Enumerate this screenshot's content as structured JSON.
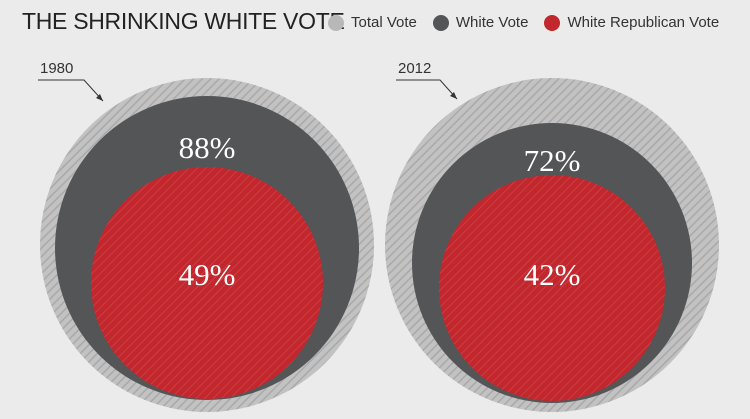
{
  "title": "THE SHRINKING WHITE VOTE",
  "legend": [
    {
      "label": "Total Vote",
      "color": "#b8b8b8"
    },
    {
      "label": "White Vote",
      "color": "#545557"
    },
    {
      "label": "White Republican Vote",
      "color": "#c1272d"
    }
  ],
  "chart_data": {
    "type": "nested-circles",
    "title": "THE SHRINKING WHITE VOTE",
    "series_names": [
      "Total Vote",
      "White Vote",
      "White Republican Vote"
    ],
    "groups": [
      {
        "label": "1980",
        "white_vote_pct": 88,
        "white_republican_vote_pct": 49,
        "white_vote_label": "88%",
        "white_republican_vote_label": "49%"
      },
      {
        "label": "2012",
        "white_vote_pct": 72,
        "white_republican_vote_pct": 42,
        "white_vote_label": "72%",
        "white_republican_vote_label": "42%"
      }
    ]
  }
}
